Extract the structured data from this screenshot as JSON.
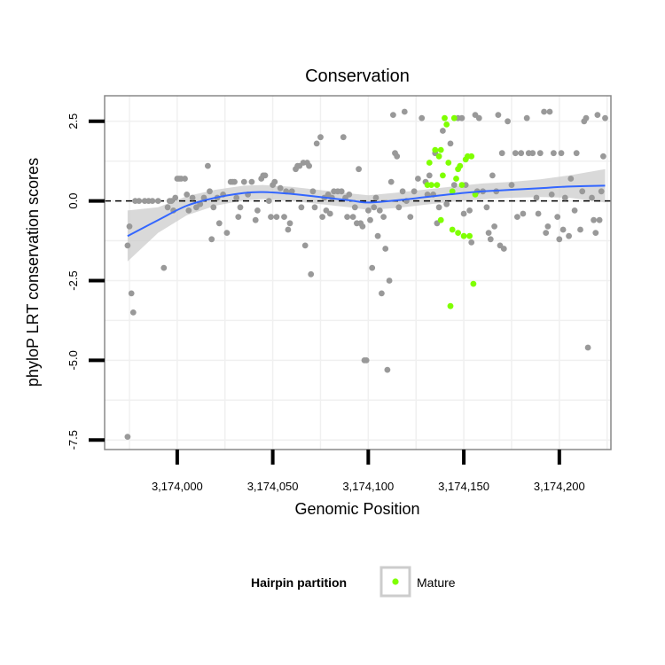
{
  "colors": {
    "background_point": "#999999",
    "mature_point": "#7fff00",
    "smooth_line": "#3366ff",
    "ribbon": "#cccccc",
    "grid": "#f0f0f0",
    "panel_border": "#888888",
    "reference_line": "#000000"
  },
  "chart_data": {
    "type": "scatter",
    "title": "Conservation",
    "xlabel": "Genomic Position",
    "ylabel": "phyloP LRT conservation scores",
    "xlim": [
      3173962,
      3174227
    ],
    "ylim": [
      -7.8,
      3.3
    ],
    "x_ticks": [
      3174000,
      3174050,
      3174100,
      3174150,
      3174200
    ],
    "x_tick_labels": [
      "3,174,000",
      "3,174,050",
      "3,174,100",
      "3,174,150",
      "3,174,200"
    ],
    "y_ticks": [
      -7.5,
      -5,
      -2.5,
      0,
      2.5
    ],
    "y_tick_labels": [
      "-7.5",
      "-5.0",
      "-2.5",
      "0.0",
      "2.5"
    ],
    "grid": true,
    "reference_line": {
      "y": 0,
      "style": "dashed"
    },
    "legend": {
      "title": "Hairpin partition",
      "entries": [
        "Mature"
      ],
      "position": "bottom"
    },
    "series": [
      {
        "name": "",
        "color": "#999999",
        "points": [
          [
            3173974,
            -7.4
          ],
          [
            3173974,
            -1.4
          ],
          [
            3173975,
            -0.8
          ],
          [
            3173976,
            -2.9
          ],
          [
            3173977,
            -3.5
          ],
          [
            3173978,
            0
          ],
          [
            3173980,
            0
          ],
          [
            3173983,
            0
          ],
          [
            3173985,
            0
          ],
          [
            3173987,
            0
          ],
          [
            3173990,
            0
          ],
          [
            3173993,
            -2.1
          ],
          [
            3173995,
            -0.2
          ],
          [
            3173996,
            0
          ],
          [
            3173997,
            0
          ],
          [
            3173998,
            -0.3
          ],
          [
            3173999,
            0.1
          ],
          [
            3174000,
            0.7
          ],
          [
            3174001,
            0.7
          ],
          [
            3174002,
            0.7
          ],
          [
            3174004,
            0.7
          ],
          [
            3174005,
            0.2
          ],
          [
            3174006,
            -0.3
          ],
          [
            3174008,
            0.1
          ],
          [
            3174010,
            -0.2
          ],
          [
            3174012,
            -0.1
          ],
          [
            3174014,
            0.1
          ],
          [
            3174016,
            1.1
          ],
          [
            3174017,
            0.3
          ],
          [
            3174018,
            -1.2
          ],
          [
            3174019,
            -0.2
          ],
          [
            3174021,
            0.1
          ],
          [
            3174022,
            -0.7
          ],
          [
            3174024,
            0.2
          ],
          [
            3174026,
            -1.0
          ],
          [
            3174028,
            0.6
          ],
          [
            3174029,
            0.6
          ],
          [
            3174030,
            0.6
          ],
          [
            3174031,
            0.1
          ],
          [
            3174032,
            -0.5
          ],
          [
            3174033,
            -0.2
          ],
          [
            3174035,
            0.6
          ],
          [
            3174037,
            0.2
          ],
          [
            3174039,
            0.6
          ],
          [
            3174041,
            -0.6
          ],
          [
            3174042,
            -0.3
          ],
          [
            3174044,
            0.7
          ],
          [
            3174045,
            0.8
          ],
          [
            3174046,
            0.8
          ],
          [
            3174048,
            0
          ],
          [
            3174049,
            -0.5
          ],
          [
            3174050,
            0.5
          ],
          [
            3174051,
            0.6
          ],
          [
            3174052,
            -0.5
          ],
          [
            3174054,
            0.4
          ],
          [
            3174056,
            -0.5
          ],
          [
            3174057,
            0.3
          ],
          [
            3174058,
            -0.9
          ],
          [
            3174059,
            -0.7
          ],
          [
            3174060,
            0.3
          ],
          [
            3174062,
            1.0
          ],
          [
            3174063,
            1.1
          ],
          [
            3174064,
            1.1
          ],
          [
            3174065,
            -0.2
          ],
          [
            3174066,
            1.2
          ],
          [
            3174067,
            -1.4
          ],
          [
            3174068,
            1.2
          ],
          [
            3174069,
            1.1
          ],
          [
            3174070,
            -2.3
          ],
          [
            3174071,
            0.3
          ],
          [
            3174072,
            -0.2
          ],
          [
            3174073,
            1.8
          ],
          [
            3174075,
            2.0
          ],
          [
            3174076,
            -0.5
          ],
          [
            3174077,
            0.1
          ],
          [
            3174078,
            -0.3
          ],
          [
            3174079,
            0.2
          ],
          [
            3174080,
            -0.4
          ],
          [
            3174081,
            0.1
          ],
          [
            3174082,
            0.3
          ],
          [
            3174084,
            0.3
          ],
          [
            3174086,
            0.3
          ],
          [
            3174087,
            2.0
          ],
          [
            3174088,
            0.1
          ],
          [
            3174089,
            -0.5
          ],
          [
            3174090,
            0.2
          ],
          [
            3174092,
            -0.5
          ],
          [
            3174093,
            -0.2
          ],
          [
            3174094,
            -0.7
          ],
          [
            3174095,
            1.0
          ],
          [
            3174096,
            -0.7
          ],
          [
            3174097,
            -0.8
          ],
          [
            3174098,
            -5.0
          ],
          [
            3174099,
            -5.0
          ],
          [
            3174100,
            -0.3
          ],
          [
            3174101,
            -0.6
          ],
          [
            3174102,
            -2.1
          ],
          [
            3174103,
            -0.2
          ],
          [
            3174104,
            0.1
          ],
          [
            3174105,
            -1.1
          ],
          [
            3174106,
            -0.3
          ],
          [
            3174107,
            -2.9
          ],
          [
            3174108,
            -0.5
          ],
          [
            3174109,
            -1.5
          ],
          [
            3174110,
            -5.3
          ],
          [
            3174111,
            -2.5
          ],
          [
            3174112,
            0.6
          ],
          [
            3174113,
            2.7
          ],
          [
            3174114,
            1.5
          ],
          [
            3174115,
            1.4
          ],
          [
            3174116,
            -0.2
          ],
          [
            3174118,
            0.3
          ],
          [
            3174119,
            2.8
          ],
          [
            3174120,
            0
          ],
          [
            3174122,
            -0.5
          ],
          [
            3174124,
            0.3
          ],
          [
            3174126,
            0.7
          ],
          [
            3174128,
            2.6
          ],
          [
            3174130,
            0.6
          ],
          [
            3174131,
            0.2
          ],
          [
            3174132,
            0.8
          ],
          [
            3174134,
            0.2
          ],
          [
            3174135,
            1.5
          ],
          [
            3174136,
            -0.7
          ],
          [
            3174137,
            -0.2
          ],
          [
            3174139,
            2.2
          ],
          [
            3174141,
            -0.1
          ],
          [
            3174143,
            1.8
          ],
          [
            3174145,
            0.5
          ],
          [
            3174147,
            2.6
          ],
          [
            3174149,
            2.6
          ],
          [
            3174150,
            -0.4
          ],
          [
            3174151,
            0.5
          ],
          [
            3174153,
            -0.3
          ],
          [
            3174154,
            -1.3
          ],
          [
            3174156,
            2.7
          ],
          [
            3174157,
            0.3
          ],
          [
            3174158,
            2.6
          ],
          [
            3174160,
            0.3
          ],
          [
            3174162,
            -0.2
          ],
          [
            3174163,
            -1.0
          ],
          [
            3174164,
            -1.2
          ],
          [
            3174165,
            0.8
          ],
          [
            3174166,
            -0.8
          ],
          [
            3174167,
            0.3
          ],
          [
            3174168,
            2.7
          ],
          [
            3174169,
            -1.4
          ],
          [
            3174170,
            1.5
          ],
          [
            3174171,
            -1.5
          ],
          [
            3174173,
            2.5
          ],
          [
            3174175,
            0.5
          ],
          [
            3174177,
            1.5
          ],
          [
            3174178,
            -0.5
          ],
          [
            3174180,
            1.5
          ],
          [
            3174181,
            -0.4
          ],
          [
            3174183,
            2.6
          ],
          [
            3174184,
            1.5
          ],
          [
            3174186,
            1.5
          ],
          [
            3174188,
            0.1
          ],
          [
            3174189,
            -0.4
          ],
          [
            3174190,
            1.5
          ],
          [
            3174192,
            2.8
          ],
          [
            3174193,
            -1.0
          ],
          [
            3174194,
            -0.8
          ],
          [
            3174195,
            2.8
          ],
          [
            3174196,
            0.2
          ],
          [
            3174197,
            1.5
          ],
          [
            3174199,
            -0.5
          ],
          [
            3174200,
            -1.2
          ],
          [
            3174201,
            1.5
          ],
          [
            3174202,
            -0.9
          ],
          [
            3174203,
            0.1
          ],
          [
            3174205,
            -1.1
          ],
          [
            3174206,
            0.7
          ],
          [
            3174208,
            -0.3
          ],
          [
            3174209,
            1.5
          ],
          [
            3174211,
            -0.9
          ],
          [
            3174212,
            0.3
          ],
          [
            3174213,
            2.5
          ],
          [
            3174214,
            2.6
          ],
          [
            3174215,
            -4.6
          ],
          [
            3174217,
            0.1
          ],
          [
            3174218,
            -0.6
          ],
          [
            3174219,
            -1.0
          ],
          [
            3174220,
            2.7
          ],
          [
            3174221,
            -0.6
          ],
          [
            3174222,
            0.3
          ],
          [
            3174223,
            1.4
          ],
          [
            3174224,
            2.6
          ]
        ]
      },
      {
        "name": "Mature",
        "color": "#7fff00",
        "points": [
          [
            3174131,
            0.5
          ],
          [
            3174132,
            1.2
          ],
          [
            3174133,
            0.5
          ],
          [
            3174135,
            1.6
          ],
          [
            3174136,
            0.5
          ],
          [
            3174137,
            1.4
          ],
          [
            3174138,
            1.6
          ],
          [
            3174139,
            0.8
          ],
          [
            3174140,
            2.6
          ],
          [
            3174141,
            2.4
          ],
          [
            3174142,
            1.2
          ],
          [
            3174143,
            -3.3
          ],
          [
            3174144,
            0.3
          ],
          [
            3174145,
            2.6
          ],
          [
            3174146,
            0.7
          ],
          [
            3174147,
            -1.0
          ],
          [
            3174148,
            1.1
          ],
          [
            3174149,
            0.5
          ],
          [
            3174150,
            -1.1
          ],
          [
            3174151,
            1.3
          ],
          [
            3174152,
            1.4
          ],
          [
            3174153,
            -1.1
          ],
          [
            3174154,
            1.4
          ],
          [
            3174155,
            -2.6
          ],
          [
            3174156,
            0.2
          ],
          [
            3174138,
            -0.6
          ],
          [
            3174144,
            -0.9
          ],
          [
            3174147,
            1.0
          ]
        ]
      }
    ],
    "smooth": {
      "method": "loess",
      "x": [
        3173974,
        3173990,
        3174005,
        3174020,
        3174035,
        3174045,
        3174060,
        3174075,
        3174090,
        3174100,
        3174115,
        3174130,
        3174145,
        3174160,
        3174175,
        3174190,
        3174205,
        3174224
      ],
      "y": [
        -1.1,
        -0.6,
        -0.15,
        0.1,
        0.25,
        0.28,
        0.22,
        0.12,
        0.02,
        -0.05,
        0.02,
        0.12,
        0.22,
        0.3,
        0.35,
        0.4,
        0.45,
        0.48
      ],
      "ci_low": [
        -1.9,
        -1.0,
        -0.45,
        -0.15,
        0.02,
        0.06,
        0.0,
        -0.1,
        -0.2,
        -0.28,
        -0.22,
        -0.12,
        -0.02,
        0.05,
        0.1,
        0.12,
        0.1,
        -0.05
      ],
      "ci_high": [
        -0.3,
        -0.2,
        0.15,
        0.35,
        0.48,
        0.5,
        0.44,
        0.34,
        0.24,
        0.18,
        0.26,
        0.36,
        0.46,
        0.55,
        0.6,
        0.68,
        0.8,
        1.0
      ]
    }
  }
}
